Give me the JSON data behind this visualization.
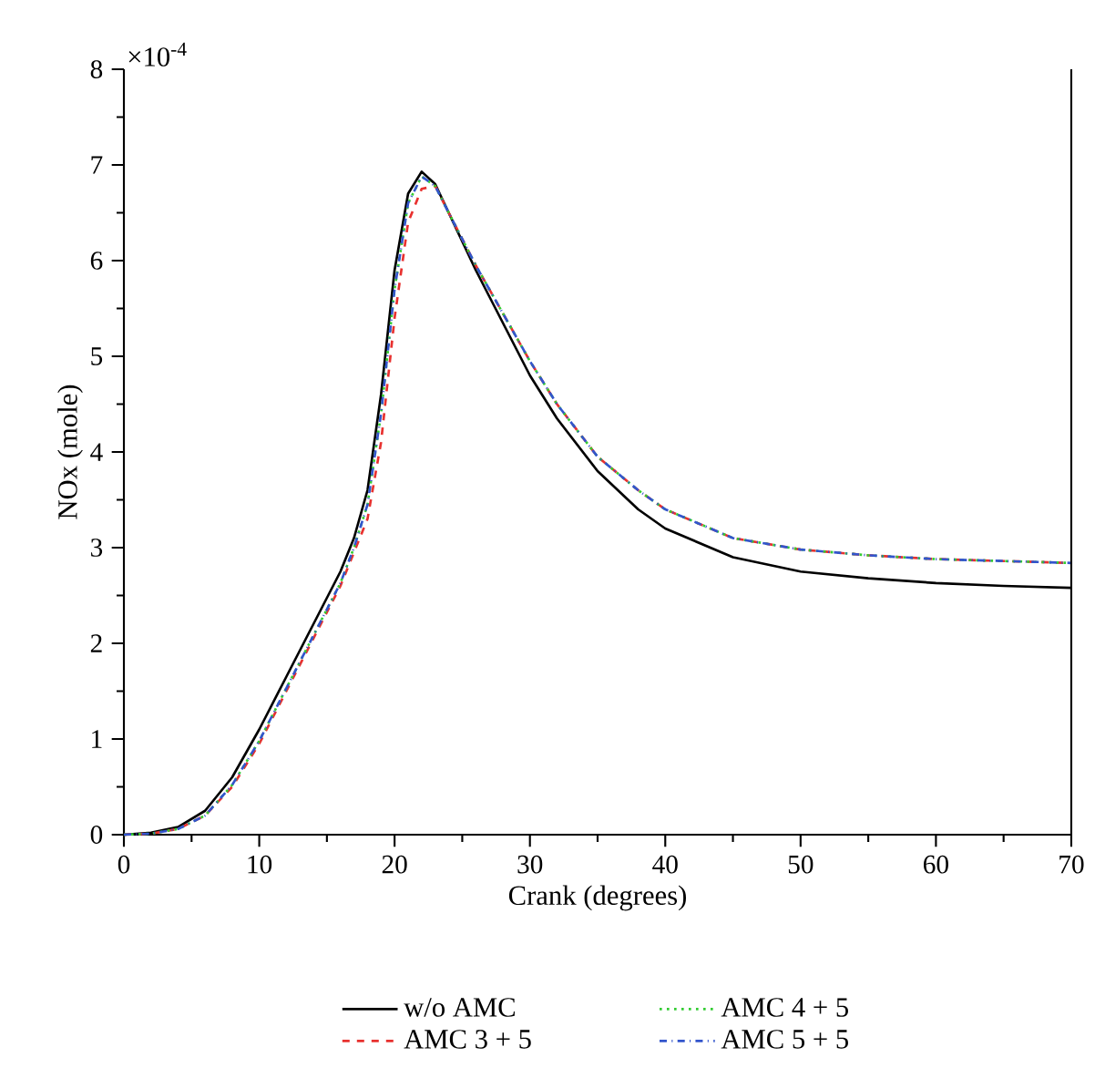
{
  "chart_data": {
    "type": "line",
    "xlabel": "Crank (degrees)",
    "ylabel": "NOx (mole)",
    "annotations": [
      "×10$^{-4}$"
    ],
    "xlim": [
      0,
      70
    ],
    "xticks": [
      0,
      10,
      20,
      30,
      40,
      50,
      60,
      70
    ],
    "ylim": [
      0,
      8
    ],
    "yticks": [
      0,
      1,
      2,
      3,
      4,
      5,
      6,
      7,
      8
    ],
    "legend": "bottom",
    "grid": false,
    "marker": "none",
    "series": [
      {
        "name": "w/o AMC",
        "color": "#000000",
        "line_style": "solid",
        "x": [
          0,
          2,
          4,
          6,
          8,
          10,
          12,
          14,
          16,
          17,
          18,
          19,
          20,
          21,
          22,
          23,
          24,
          26,
          28,
          30,
          32,
          35,
          38,
          40,
          45,
          50,
          55,
          60,
          65,
          70
        ],
        "values": [
          0,
          0.02,
          0.08,
          0.25,
          0.6,
          1.1,
          1.65,
          2.2,
          2.75,
          3.1,
          3.6,
          4.6,
          5.9,
          6.7,
          6.93,
          6.8,
          6.5,
          5.9,
          5.35,
          4.8,
          4.35,
          3.8,
          3.4,
          3.2,
          2.9,
          2.75,
          2.68,
          2.63,
          2.6,
          2.58
        ]
      },
      {
        "name": "AMC 3 + 5",
        "color": "#e8312f",
        "line_style": "dashed",
        "x": [
          0,
          2,
          4,
          6,
          8,
          10,
          12,
          14,
          16,
          17,
          18,
          19,
          20,
          21,
          22,
          23,
          24,
          26,
          28,
          30,
          32,
          35,
          38,
          40,
          45,
          50,
          55,
          60,
          65,
          70
        ],
        "values": [
          0,
          0.01,
          0.06,
          0.2,
          0.5,
          0.95,
          1.5,
          2.05,
          2.6,
          2.95,
          3.3,
          4.1,
          5.4,
          6.4,
          6.75,
          6.78,
          6.5,
          5.95,
          5.45,
          4.95,
          4.5,
          3.95,
          3.6,
          3.4,
          3.1,
          2.98,
          2.92,
          2.88,
          2.86,
          2.84
        ]
      },
      {
        "name": "AMC 4 + 5",
        "color": "#33cc33",
        "line_style": "dotted",
        "x": [
          0,
          2,
          4,
          6,
          8,
          10,
          12,
          14,
          16,
          17,
          18,
          19,
          20,
          21,
          22,
          23,
          24,
          26,
          28,
          30,
          32,
          35,
          38,
          40,
          45,
          50,
          55,
          60,
          65,
          70
        ],
        "values": [
          0,
          0.01,
          0.06,
          0.2,
          0.52,
          0.98,
          1.53,
          2.08,
          2.63,
          3.0,
          3.45,
          4.4,
          5.7,
          6.6,
          6.88,
          6.78,
          6.5,
          5.95,
          5.45,
          4.95,
          4.5,
          3.95,
          3.6,
          3.4,
          3.1,
          2.98,
          2.92,
          2.88,
          2.86,
          2.84
        ]
      },
      {
        "name": "AMC 5 + 5",
        "color": "#3355cc",
        "line_style": "dashdotted",
        "x": [
          0,
          2,
          4,
          6,
          8,
          10,
          12,
          14,
          16,
          17,
          18,
          19,
          20,
          21,
          22,
          23,
          24,
          26,
          28,
          30,
          32,
          35,
          38,
          40,
          45,
          50,
          55,
          60,
          65,
          70
        ],
        "values": [
          0,
          0.01,
          0.06,
          0.2,
          0.52,
          0.98,
          1.53,
          2.08,
          2.63,
          3.0,
          3.45,
          4.4,
          5.7,
          6.6,
          6.88,
          6.78,
          6.5,
          5.95,
          5.45,
          4.95,
          4.5,
          3.95,
          3.6,
          3.4,
          3.1,
          2.98,
          2.92,
          2.88,
          2.86,
          2.84
        ]
      }
    ]
  }
}
